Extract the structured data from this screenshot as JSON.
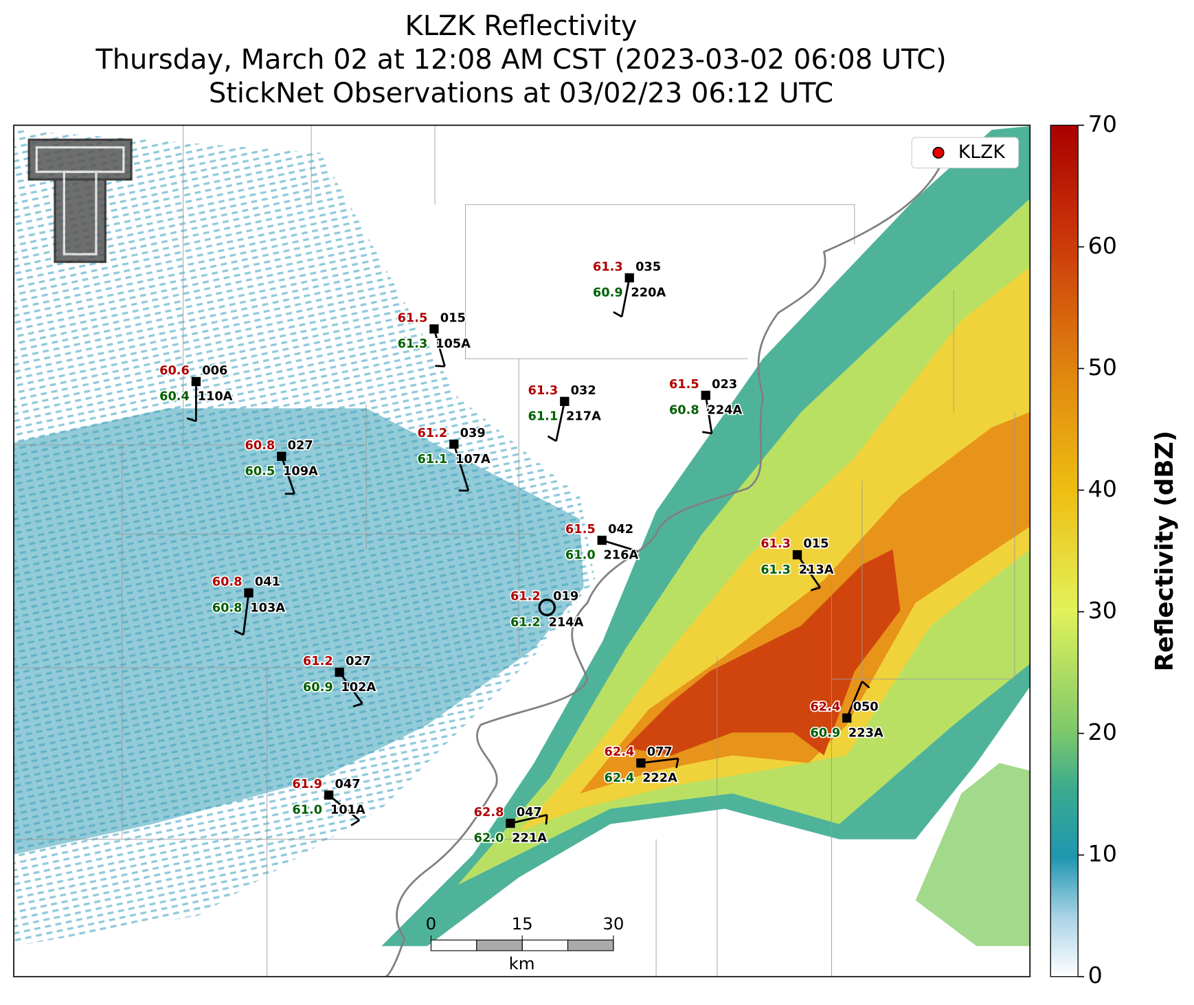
{
  "title": {
    "line1": "KLZK Reflectivity",
    "line2": "Thursday, March 02 at 12:08 AM CST (2023-03-02 06:08 UTC)",
    "line3": "StickNet Observations at 03/02/23 06:12 UTC"
  },
  "legend": {
    "label": "KLZK"
  },
  "colorbar": {
    "label": "Reflectivity (dBZ)",
    "lim": [
      0,
      70
    ],
    "ticks": [
      0,
      10,
      20,
      30,
      40,
      50,
      60,
      70
    ]
  },
  "scalebar": {
    "unit": "km",
    "ticks": [
      0,
      15,
      30
    ]
  },
  "stations": [
    {
      "id": "110A",
      "code": "006",
      "temperature": "60.6",
      "dewpoint": "60.4"
    },
    {
      "id": "105A",
      "code": "015",
      "temperature": "61.5",
      "dewpoint": "61.3"
    },
    {
      "id": "220A",
      "code": "035",
      "temperature": "61.3",
      "dewpoint": "60.9"
    },
    {
      "id": "217A",
      "code": "032",
      "temperature": "61.3",
      "dewpoint": "61.1"
    },
    {
      "id": "224A",
      "code": "023",
      "temperature": "61.5",
      "dewpoint": "60.8"
    },
    {
      "id": "109A",
      "code": "027",
      "temperature": "60.8",
      "dewpoint": "60.5"
    },
    {
      "id": "107A",
      "code": "039",
      "temperature": "61.2",
      "dewpoint": "61.1"
    },
    {
      "id": "216A",
      "code": "042",
      "temperature": "61.5",
      "dewpoint": "61.0"
    },
    {
      "id": "213A",
      "code": "015",
      "temperature": "61.3",
      "dewpoint": "61.3"
    },
    {
      "id": "103A",
      "code": "041",
      "temperature": "60.8",
      "dewpoint": "60.8"
    },
    {
      "id": "214A",
      "code": "019",
      "temperature": "61.2",
      "dewpoint": "61.2"
    },
    {
      "id": "102A",
      "code": "027",
      "temperature": "61.2",
      "dewpoint": "60.9"
    },
    {
      "id": "223A",
      "code": "050",
      "temperature": "62.4",
      "dewpoint": "60.9"
    },
    {
      "id": "222A",
      "code": "077",
      "temperature": "62.4",
      "dewpoint": "62.4"
    },
    {
      "id": "101A",
      "code": "047",
      "temperature": "61.9",
      "dewpoint": "61.0"
    },
    {
      "id": "221A",
      "code": "047",
      "temperature": "62.8",
      "dewpoint": "62.0"
    }
  ]
}
